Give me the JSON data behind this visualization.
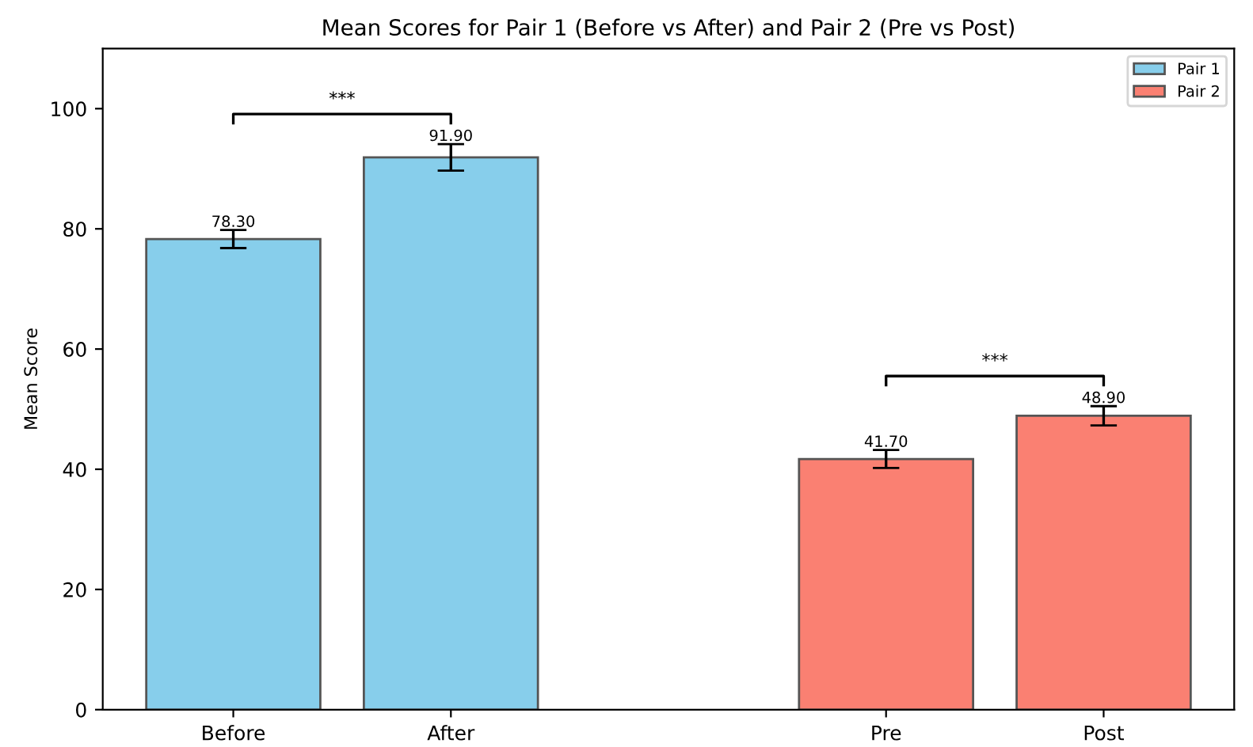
{
  "chart_data": {
    "type": "bar",
    "title": "Mean Scores for Pair 1 (Before vs After) and Pair 2 (Pre vs Post)",
    "ylabel": "Mean Score",
    "categories": [
      "Before",
      "After",
      null,
      "Pre",
      "Post"
    ],
    "series": [
      {
        "name": "Pair 1",
        "color": "#87ceeb",
        "values": [
          78.3,
          91.9,
          null,
          null,
          null
        ],
        "errors": [
          1.5,
          2.2,
          null,
          null,
          null
        ],
        "value_labels": [
          "78.30",
          "91.90",
          null,
          null,
          null
        ]
      },
      {
        "name": "Pair 2",
        "color": "#fa8072",
        "values": [
          null,
          null,
          null,
          41.7,
          48.9
        ],
        "errors": [
          null,
          null,
          null,
          1.5,
          1.6
        ],
        "value_labels": [
          null,
          null,
          null,
          "41.70",
          "48.90"
        ]
      }
    ],
    "ylim": [
      0,
      110
    ],
    "yticks": [
      0,
      20,
      40,
      60,
      80,
      100
    ],
    "annotations": [
      "***",
      "***"
    ],
    "legend": "top right",
    "grid": false
  }
}
